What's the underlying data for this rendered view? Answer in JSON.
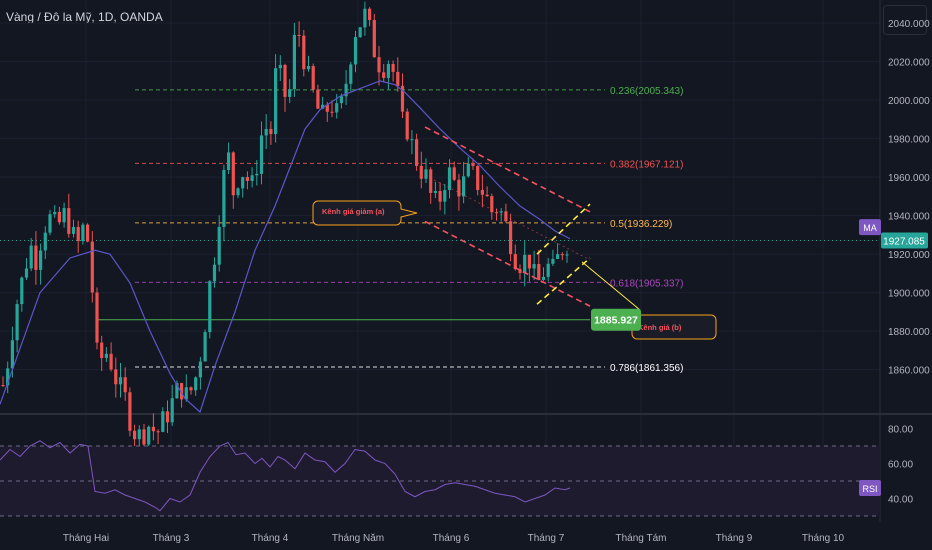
{
  "header": {
    "title": "Vàng / Đô la Mỹ, 1D, OANDA"
  },
  "colors": {
    "background": "#131722",
    "up": "#26a69a",
    "down": "#ef5350",
    "ma": "#5b57c9",
    "rsi": "#7e57c2",
    "fib_0236": "#4caf50",
    "fib_0382": "#ef5350",
    "fib_05": "#ffb74d",
    "fib_0618": "#ab47bc",
    "fib_0786": "#ffffff",
    "channel_down": "#f7525f",
    "channel_b": "#ffeb3b",
    "support": "#4caf50",
    "price_tag": "#26a69a",
    "label_tag": "#7e57c2"
  },
  "chart_data": [
    {
      "type": "candlestick",
      "title": "Vàng / Đô la Mỹ, 1D, OANDA",
      "ylim": [
        1838,
        2052
      ],
      "y_ticks": [
        "2040.000",
        "2020.000",
        "2000.000",
        "1980.000",
        "1960.000",
        "1940.000",
        "1920.000",
        "1900.000",
        "1880.000",
        "1860.000"
      ],
      "x_ticks": [
        "Tháng Hai",
        "Tháng 3",
        "Tháng 4",
        "Tháng Năm",
        "Tháng 6",
        "Tháng 7",
        "Tháng Tám",
        "Tháng 9",
        "Tháng 10"
      ],
      "current_price": "1927.085",
      "indicator_label": "MA",
      "fib_levels": [
        {
          "ratio": "0.236",
          "price": "2005.343",
          "value": 2005.343,
          "label": "0.236(2005.343)"
        },
        {
          "ratio": "0.382",
          "price": "1967.121",
          "value": 1967.121,
          "label": "0.382(1967.121)"
        },
        {
          "ratio": "0.5",
          "price": "1936.229",
          "value": 1936.229,
          "label": "0.5(1936.229)"
        },
        {
          "ratio": "0.618",
          "price": "1905.337",
          "value": 1905.337,
          "label": "0.618(1905.337)"
        },
        {
          "ratio": "0.786",
          "price": "1861.356",
          "value": 1861.356,
          "label": "0.786(1861.356)"
        }
      ],
      "support_level": {
        "value": 1885.927,
        "label": "1885.927"
      },
      "annotations": [
        {
          "text": "Kênh giá giảm (a)"
        },
        {
          "text": "Kênh giá (b)"
        }
      ]
    },
    {
      "type": "line",
      "title": "RSI",
      "indicator_label": "RSI",
      "ylim": [
        30,
        86
      ],
      "y_ticks": [
        "80.00",
        "60.00",
        "40.00"
      ],
      "bands": [
        70,
        50,
        30
      ]
    }
  ]
}
